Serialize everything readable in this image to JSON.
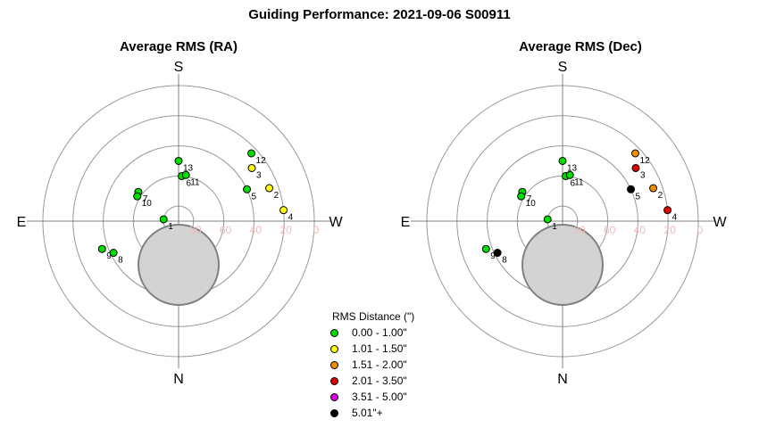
{
  "title": "Guiding Performance: 2021-09-06 S00911",
  "chart_data": [
    {
      "type": "scatter",
      "projection": "polar",
      "title": "Average RMS (RA)",
      "directions": {
        "top": "S",
        "bottom": "N",
        "left": "E",
        "right": "W"
      },
      "r_tick_labels": [
        "80",
        "60",
        "40",
        "20",
        "0"
      ],
      "rings": [
        80,
        60,
        40,
        20,
        0
      ],
      "points": [
        {
          "label": "1",
          "az": 97,
          "alt": 80,
          "bin": 0
        },
        {
          "label": "2",
          "az": 250,
          "alt": 26,
          "bin": 1
        },
        {
          "label": "3",
          "az": 234,
          "alt": 30,
          "bin": 1
        },
        {
          "label": "4",
          "az": 264,
          "alt": 20,
          "bin": 1
        },
        {
          "label": "5",
          "az": 245,
          "alt": 40,
          "bin": 0
        },
        {
          "label": "6",
          "az": 184,
          "alt": 60,
          "bin": 0
        },
        {
          "label": "7",
          "az": 126,
          "alt": 57,
          "bin": 0
        },
        {
          "label": "8",
          "az": 64,
          "alt": 42,
          "bin": 0
        },
        {
          "label": "9",
          "az": 70,
          "alt": 36,
          "bin": 0
        },
        {
          "label": "10",
          "az": 121,
          "alt": 58,
          "bin": 0
        },
        {
          "label": "11",
          "az": 189,
          "alt": 59,
          "bin": 0
        },
        {
          "label": "12",
          "az": 227,
          "alt": 24,
          "bin": 0
        },
        {
          "label": "13",
          "az": 180,
          "alt": 50,
          "bin": 0
        }
      ]
    },
    {
      "type": "scatter",
      "projection": "polar",
      "title": "Average RMS (Dec)",
      "directions": {
        "top": "S",
        "bottom": "N",
        "left": "E",
        "right": "W"
      },
      "r_tick_labels": [
        "80",
        "60",
        "40",
        "20",
        "0"
      ],
      "rings": [
        80,
        60,
        40,
        20,
        0
      ],
      "points": [
        {
          "label": "1",
          "az": 97,
          "alt": 80,
          "bin": 0
        },
        {
          "label": "2",
          "az": 250,
          "alt": 26,
          "bin": 2
        },
        {
          "label": "3",
          "az": 234,
          "alt": 30,
          "bin": 3
        },
        {
          "label": "4",
          "az": 264,
          "alt": 20,
          "bin": 3
        },
        {
          "label": "5",
          "az": 245,
          "alt": 40,
          "bin": 5
        },
        {
          "label": "6",
          "az": 184,
          "alt": 60,
          "bin": 0
        },
        {
          "label": "7",
          "az": 126,
          "alt": 57,
          "bin": 0
        },
        {
          "label": "8",
          "az": 64,
          "alt": 42,
          "bin": 5
        },
        {
          "label": "9",
          "az": 70,
          "alt": 36,
          "bin": 0
        },
        {
          "label": "10",
          "az": 121,
          "alt": 58,
          "bin": 0
        },
        {
          "label": "11",
          "az": 189,
          "alt": 59,
          "bin": 0
        },
        {
          "label": "12",
          "az": 227,
          "alt": 24,
          "bin": 2
        },
        {
          "label": "13",
          "az": 180,
          "alt": 50,
          "bin": 0
        }
      ]
    }
  ],
  "legend": {
    "title": "RMS Distance (\")",
    "items": [
      {
        "label": "0.00 - 1.00\"",
        "color": "#00e000"
      },
      {
        "label": "1.01 - 1.50\"",
        "color": "#ffff00"
      },
      {
        "label": "1.51 - 2.00\"",
        "color": "#f09000"
      },
      {
        "label": "2.01 - 3.50\"",
        "color": "#e00000"
      },
      {
        "label": "3.51 - 5.00\"",
        "color": "#e000e0"
      },
      {
        "label": "5.01\"+",
        "color": "#000000"
      }
    ]
  },
  "colors": {
    "ring": "#999999",
    "axis": "#808080",
    "tick_label": "#f4b8b8",
    "obstruction_fill": "#d3d3d3",
    "obstruction_stroke": "#808080"
  }
}
